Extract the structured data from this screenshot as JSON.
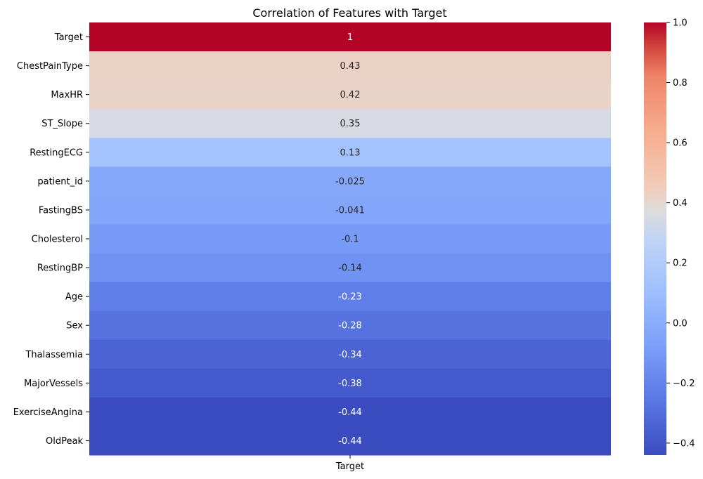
{
  "chart_data": {
    "type": "heatmap",
    "title": "Correlation of Features with Target",
    "columns": [
      "Target"
    ],
    "rows": [
      "Target",
      "ChestPainType",
      "MaxHR",
      "ST_Slope",
      "RestingECG",
      "patient_id",
      "FastingBS",
      "Cholesterol",
      "RestingBP",
      "Age",
      "Sex",
      "Thalassemia",
      "MajorVessels",
      "ExerciseAngina",
      "OldPeak"
    ],
    "values": [
      1.0,
      0.43,
      0.42,
      0.35,
      0.13,
      -0.025,
      -0.041,
      -0.1,
      -0.14,
      -0.23,
      -0.28,
      -0.34,
      -0.38,
      -0.44,
      -0.44
    ],
    "annotations": [
      "1",
      "0.43",
      "0.42",
      "0.35",
      "0.13",
      "-0.025",
      "-0.041",
      "-0.1",
      "-0.14",
      "-0.23",
      "-0.28",
      "-0.34",
      "-0.38",
      "-0.44",
      "-0.44"
    ],
    "colormap": "coolwarm",
    "vmin": -0.44,
    "vmax": 1.0,
    "colorbar_ticks": [
      {
        "value": -0.4,
        "label": "−0.4"
      },
      {
        "value": -0.2,
        "label": "−0.2"
      },
      {
        "value": 0.0,
        "label": "0.0"
      },
      {
        "value": 0.2,
        "label": "0.2"
      },
      {
        "value": 0.4,
        "label": "0.4"
      },
      {
        "value": 0.6,
        "label": "0.6"
      },
      {
        "value": 0.8,
        "label": "0.8"
      },
      {
        "value": 1.0,
        "label": "1.0"
      }
    ],
    "grid": false,
    "legend": "colorbar-right"
  }
}
